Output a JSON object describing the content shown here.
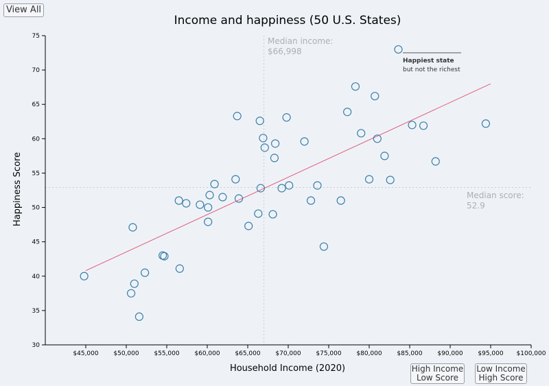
{
  "buttons": {
    "view_all": "View All",
    "high_income_low_score": [
      "High Income",
      "Low Score"
    ],
    "low_income_high_score": [
      "Low Income",
      "High Score"
    ]
  },
  "median_income_label": [
    "Median income:",
    "$66,998"
  ],
  "median_score_label": [
    "Median score:",
    "52.9"
  ],
  "annotation": {
    "title": "Happiest state",
    "subtitle": "but not the richest"
  },
  "colors": {
    "point": "#3a7fa8",
    "trend": "#e35d7a",
    "median_line": "#c8ccd2"
  },
  "chart_data": {
    "type": "scatter",
    "title": "Income and happiness (50 U.S. States)",
    "xlabel": "Household Income (2020)",
    "ylabel": "Happiness Score",
    "xlim": [
      40000,
      100000
    ],
    "ylim": [
      30,
      75
    ],
    "x_ticks": [
      45000,
      50000,
      55000,
      60000,
      65000,
      70000,
      75000,
      80000,
      85000,
      90000,
      95000,
      100000
    ],
    "x_tick_labels": [
      "$45,000",
      "$50,000",
      "$55,000",
      "$60,000",
      "$65,000",
      "$70,000",
      "$75,000",
      "$80,000",
      "$85,000",
      "$90,000",
      "$95,000",
      "$100,000"
    ],
    "y_ticks": [
      30,
      35,
      40,
      45,
      50,
      55,
      60,
      65,
      70,
      75
    ],
    "median_income": 66998,
    "median_score": 52.9,
    "trendline": [
      [
        45000,
        40.8
      ],
      [
        95000,
        68.0
      ]
    ],
    "points": [
      [
        44800,
        40.0
      ],
      [
        50800,
        47.1
      ],
      [
        50600,
        37.5
      ],
      [
        51000,
        38.9
      ],
      [
        51600,
        34.1
      ],
      [
        52300,
        40.5
      ],
      [
        54500,
        43.0
      ],
      [
        54700,
        42.9
      ],
      [
        56500,
        51.0
      ],
      [
        56600,
        41.1
      ],
      [
        57400,
        50.6
      ],
      [
        59100,
        50.4
      ],
      [
        60100,
        50.0
      ],
      [
        60100,
        47.9
      ],
      [
        60300,
        51.8
      ],
      [
        60900,
        53.4
      ],
      [
        61900,
        51.5
      ],
      [
        63500,
        54.1
      ],
      [
        63700,
        63.3
      ],
      [
        63900,
        51.3
      ],
      [
        65100,
        47.3
      ],
      [
        66300,
        49.1
      ],
      [
        66500,
        62.6
      ],
      [
        66600,
        52.8
      ],
      [
        66900,
        60.1
      ],
      [
        67100,
        58.7
      ],
      [
        68100,
        49.0
      ],
      [
        68300,
        57.2
      ],
      [
        68400,
        59.3
      ],
      [
        69200,
        52.8
      ],
      [
        69800,
        63.1
      ],
      [
        70100,
        53.2
      ],
      [
        72000,
        59.6
      ],
      [
        72800,
        51.0
      ],
      [
        73600,
        53.2
      ],
      [
        74400,
        44.3
      ],
      [
        76500,
        51.0
      ],
      [
        77300,
        63.9
      ],
      [
        78300,
        67.6
      ],
      [
        79000,
        60.8
      ],
      [
        80000,
        54.1
      ],
      [
        80700,
        66.2
      ],
      [
        81000,
        60.0
      ],
      [
        81900,
        57.5
      ],
      [
        82600,
        54.0
      ],
      [
        83600,
        73.0
      ],
      [
        85300,
        62.0
      ],
      [
        86700,
        61.9
      ],
      [
        88200,
        56.7
      ],
      [
        94400,
        62.2
      ]
    ]
  }
}
